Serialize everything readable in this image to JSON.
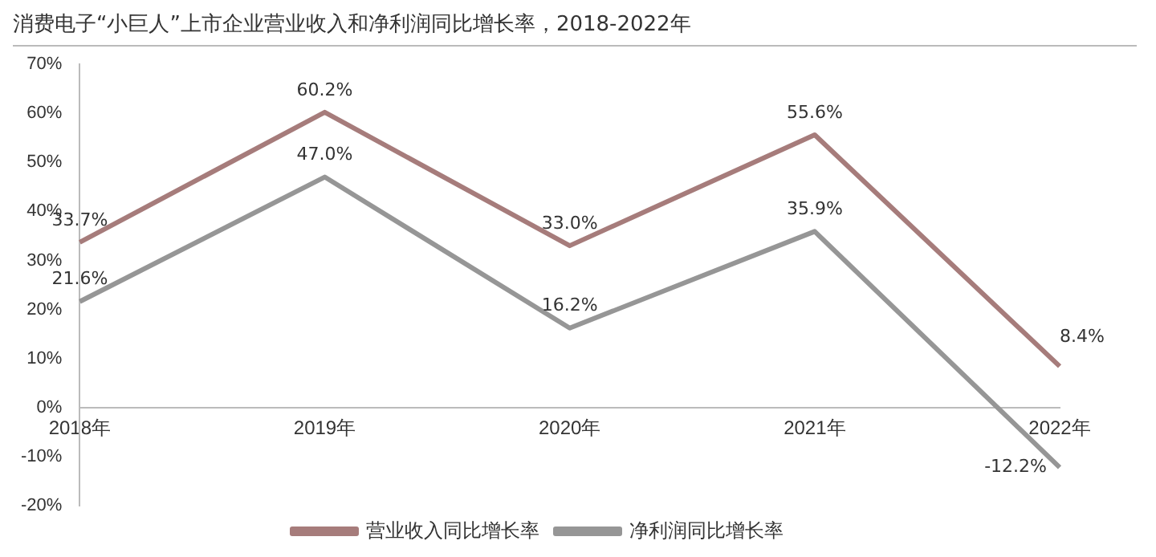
{
  "chart_data": {
    "type": "line",
    "title": "消费电子“小巨人”上市企业营业收入和净利润同比增长率，2018-2022年",
    "categories": [
      "2018年",
      "2019年",
      "2020年",
      "2021年",
      "2022年"
    ],
    "series": [
      {
        "name": "营业收入同比增长率",
        "color": "#a67c7b",
        "values": [
          33.7,
          60.2,
          33.0,
          55.6,
          8.4
        ],
        "value_labels": [
          "33.7%",
          "60.2%",
          "33.0%",
          "55.6%",
          "8.4%"
        ]
      },
      {
        "name": "净利润同比增长率",
        "color": "#969696",
        "values": [
          21.6,
          47.0,
          16.2,
          35.9,
          -12.2
        ],
        "value_labels": [
          "21.6%",
          "47.0%",
          "16.2%",
          "35.9%",
          "-12.2%"
        ]
      }
    ],
    "ylim": [
      -20,
      70
    ],
    "yticks": [
      {
        "value": -20,
        "label": "-20%"
      },
      {
        "value": -10,
        "label": "-10%"
      },
      {
        "value": 0,
        "label": "0%"
      },
      {
        "value": 10,
        "label": "10%"
      },
      {
        "value": 20,
        "label": "20%"
      },
      {
        "value": 30,
        "label": "30%"
      },
      {
        "value": 40,
        "label": "40%"
      },
      {
        "value": 50,
        "label": "50%"
      },
      {
        "value": 60,
        "label": "60%"
      },
      {
        "value": 70,
        "label": "70%"
      }
    ],
    "grid": false,
    "legend": "bottom",
    "marker": "none",
    "line_style": "solid"
  }
}
